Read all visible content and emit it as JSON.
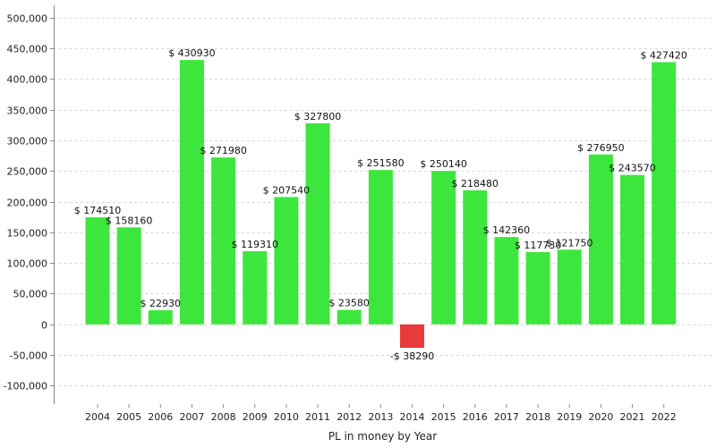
{
  "chart_data": {
    "type": "bar",
    "title": "",
    "xlabel": "PL in money by Year",
    "ylabel": "",
    "categories": [
      "2004",
      "2005",
      "2006",
      "2007",
      "2008",
      "2009",
      "2010",
      "2011",
      "2012",
      "2013",
      "2014",
      "2015",
      "2016",
      "2017",
      "2018",
      "2019",
      "2020",
      "2021",
      "2022"
    ],
    "values": [
      174510,
      158160,
      22930,
      430930,
      271980,
      119310,
      207540,
      327800,
      23580,
      251580,
      -38290,
      250140,
      218480,
      142360,
      117730,
      121750,
      276950,
      243570,
      427420
    ],
    "data_labels": [
      "$ 174510",
      "$ 158160",
      "$ 22930",
      "$ 430930",
      "$ 271980",
      "$ 119310",
      "$ 207540",
      "$ 327800",
      "$ 23580",
      "$ 251580",
      "-$ 38290",
      "$ 250140",
      "$ 218480",
      "$ 142360",
      "$ 117730",
      "$ 121750",
      "$ 276950",
      "$ 243570",
      "$ 427420"
    ],
    "ylim": [
      -130000,
      520000
    ],
    "yticks": [
      -100000,
      -50000,
      0,
      50000,
      100000,
      150000,
      200000,
      250000,
      300000,
      350000,
      400000,
      450000,
      500000
    ],
    "ytick_labels": [
      "-100,000",
      "-50,000",
      "0",
      "50,000",
      "100,000",
      "150,000",
      "200,000",
      "250,000",
      "300,000",
      "350,000",
      "400,000",
      "450,000",
      "500,000"
    ],
    "grid": true,
    "colors": {
      "positive": "#3de63d",
      "negative": "#e83a3a",
      "grid": "#d8d8d8",
      "axis": "#888888"
    }
  }
}
